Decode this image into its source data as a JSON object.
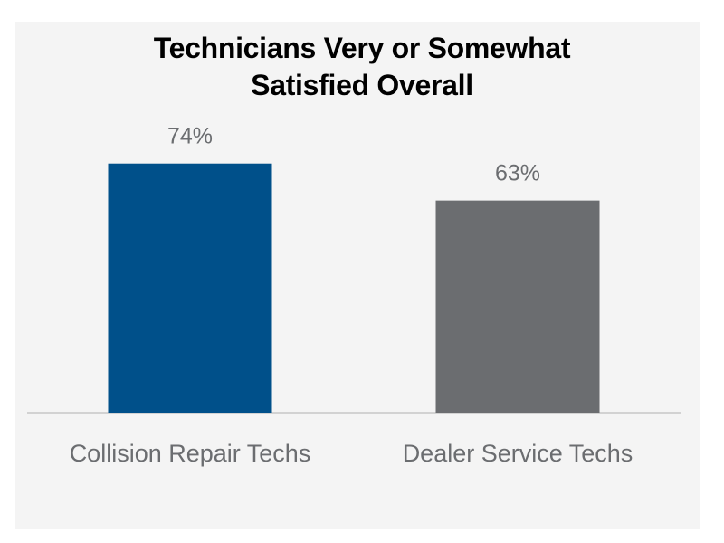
{
  "chart_data": {
    "type": "bar",
    "title_lines": [
      "Technicians Very or Somewhat",
      "Satisfied Overall"
    ],
    "categories": [
      "Collision Repair Techs",
      "Dealer Service Techs"
    ],
    "values": [
      74,
      63
    ],
    "value_labels": [
      "74%",
      "63%"
    ],
    "colors": [
      "#00508a",
      "#6b6d70"
    ],
    "ylim": [
      0,
      100
    ],
    "grid": false,
    "legend": "none"
  }
}
